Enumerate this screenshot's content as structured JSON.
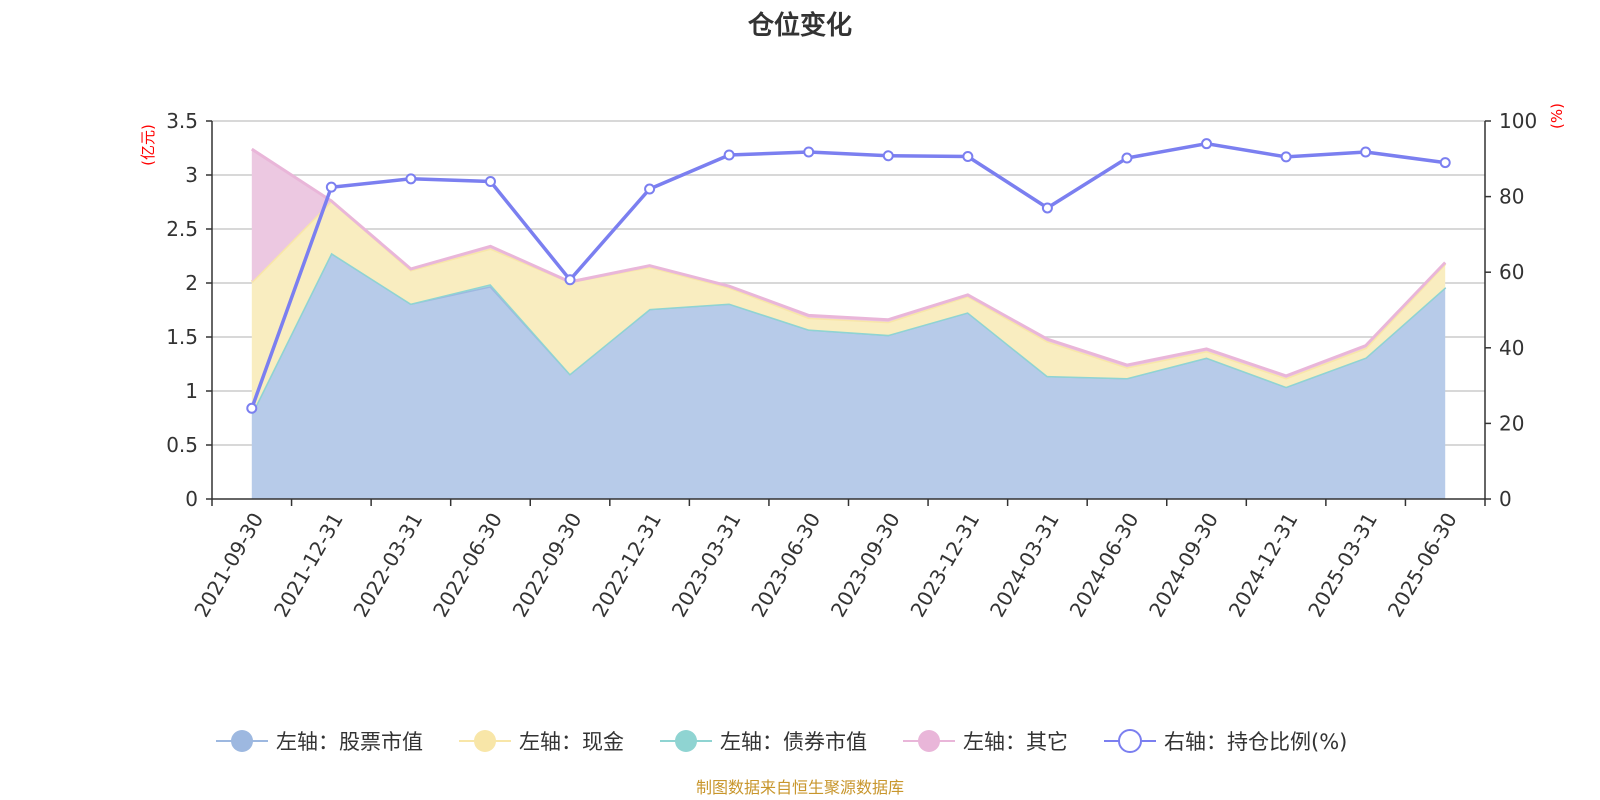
{
  "chart_data": {
    "type": "area",
    "title": "仓位变化",
    "left_axis_unit": "(亿元)",
    "right_axis_unit": "(%)",
    "categories": [
      "2021-09-30",
      "2021-12-31",
      "2022-03-31",
      "2022-06-30",
      "2022-09-30",
      "2022-12-31",
      "2023-03-31",
      "2023-06-30",
      "2023-09-30",
      "2023-12-31",
      "2024-03-31",
      "2024-06-30",
      "2024-09-30",
      "2024-12-31",
      "2025-03-31",
      "2025-06-30"
    ],
    "left_ylim": [
      0,
      3.5
    ],
    "left_ticks": [
      "0",
      "0.5",
      "1",
      "1.5",
      "2",
      "2.5",
      "3",
      "3.5"
    ],
    "right_ylim": [
      0,
      100
    ],
    "right_ticks": [
      "0",
      "20",
      "40",
      "60",
      "80",
      "100"
    ],
    "stack_order": [
      "stock",
      "bond",
      "cash",
      "other"
    ],
    "series": {
      "stock": {
        "name": "左轴：股票市值",
        "color": "#9db8e0",
        "fill": "#b7cbe9",
        "values": [
          0.79,
          2.28,
          1.81,
          1.97,
          1.16,
          1.76,
          1.81,
          1.57,
          1.52,
          1.73,
          1.14,
          1.12,
          1.31,
          1.04,
          1.31,
          1.96
        ]
      },
      "cash": {
        "name": "左轴：现金",
        "color": "#f8e6a8",
        "fill": "#f9edc0",
        "values": [
          1.22,
          0.48,
          0.31,
          0.33,
          0.85,
          0.39,
          0.15,
          0.11,
          0.12,
          0.15,
          0.32,
          0.1,
          0.06,
          0.08,
          0.09,
          0.22
        ]
      },
      "bond": {
        "name": "左轴：债券市值",
        "color": "#8fd4d2",
        "fill": "#a8dcd9",
        "values": [
          0,
          0,
          0,
          0.02,
          0,
          0,
          0,
          0,
          0,
          0,
          0,
          0,
          0,
          0,
          0,
          0
        ]
      },
      "other": {
        "name": "左轴：其它",
        "color": "#e9b6d9",
        "fill": "#ecc8e1",
        "values": [
          1.23,
          0.0,
          0.01,
          0.02,
          0.0,
          0.01,
          0.01,
          0.02,
          0.02,
          0.01,
          0.02,
          0.02,
          0.02,
          0.02,
          0.02,
          0.01
        ]
      },
      "ratio": {
        "name": "右轴：持仓比例(%)",
        "color": "#7b7ff0",
        "values": [
          24,
          82.5,
          84.7,
          84,
          58,
          82,
          91,
          91.8,
          90.8,
          90.6,
          77,
          90.2,
          94,
          90.5,
          91.8,
          89
        ]
      }
    },
    "legend_order": [
      "stock",
      "cash",
      "bond",
      "other",
      "ratio"
    ],
    "legend_position": "bottom",
    "grid": true
  },
  "footer": "制图数据来自恒生聚源数据库"
}
